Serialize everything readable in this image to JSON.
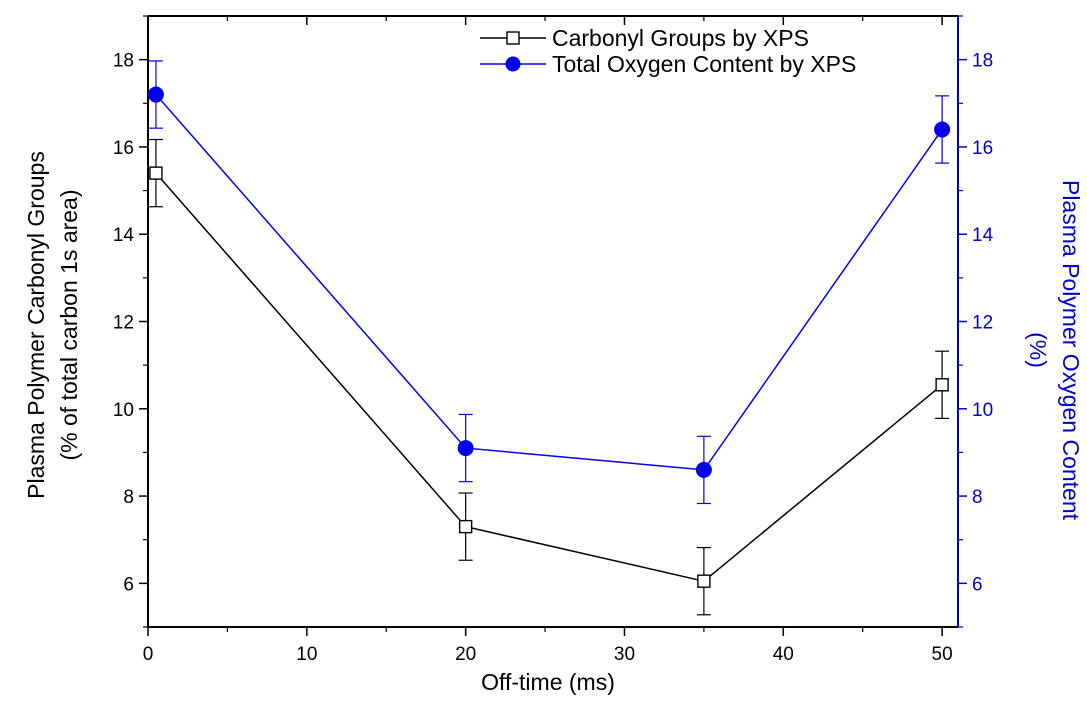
{
  "chart_data": {
    "type": "line",
    "xlabel": "Off-time (ms)",
    "ylabel_left_line1": "Plasma Polymer Carbonyl Groups",
    "ylabel_left_line2": "(% of total carbon 1s area)",
    "ylabel_right_line1": "Plasma Polymer Oxygen Content",
    "ylabel_right_line2": "(%)",
    "xlim": [
      0,
      51
    ],
    "ylim_left": [
      5,
      19
    ],
    "ylim_right": [
      5,
      19
    ],
    "x_ticks": [
      0,
      10,
      20,
      30,
      40,
      50
    ],
    "y_ticks_left": [
      6,
      8,
      10,
      12,
      14,
      16,
      18
    ],
    "y_ticks_right": [
      6,
      8,
      10,
      12,
      14,
      16,
      18
    ],
    "grid": false,
    "legend_position": "top-right",
    "colors": {
      "left_axis": "#000000",
      "right_axis": "#0000cc",
      "series_1": "#000000",
      "series_2": "#0000ee"
    },
    "series": [
      {
        "name": "Carbonyl Groups by XPS",
        "axis": "left",
        "marker": "open-square",
        "x": [
          0.5,
          20,
          35,
          50
        ],
        "y": [
          15.4,
          7.3,
          6.05,
          10.55
        ],
        "err": [
          0.77,
          0.77,
          0.77,
          0.77
        ]
      },
      {
        "name": "Total Oxygen Content by XPS",
        "axis": "right",
        "marker": "filled-circle",
        "x": [
          0.5,
          20,
          35,
          50
        ],
        "y": [
          17.2,
          9.1,
          8.6,
          16.4
        ],
        "err": [
          0.77,
          0.77,
          0.77,
          0.77
        ]
      }
    ]
  }
}
